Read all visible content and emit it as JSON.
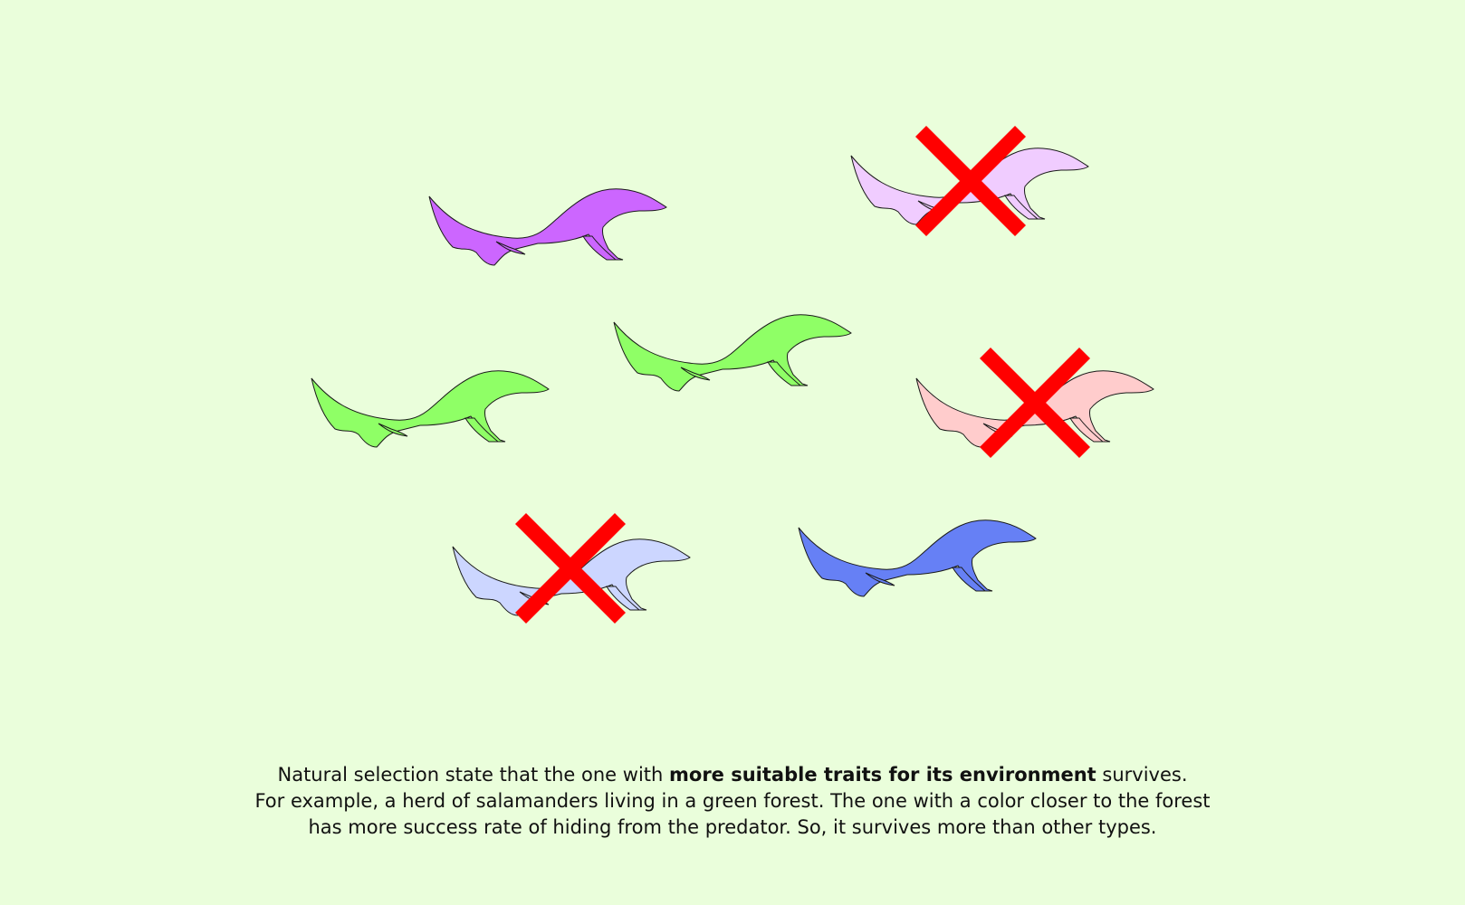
{
  "colors": {
    "background": "#eafedb",
    "outline": "#1a1a1a",
    "cross": "#ff0000"
  },
  "salamanders": [
    {
      "id": "purple",
      "color": "#cc66ff",
      "eliminated": false
    },
    {
      "id": "pale-lilac",
      "color": "#f0ccff",
      "eliminated": true
    },
    {
      "id": "green-center",
      "color": "#8fff66",
      "eliminated": false
    },
    {
      "id": "green-left",
      "color": "#8fff66",
      "eliminated": false
    },
    {
      "id": "pale-pink",
      "color": "#ffcccc",
      "eliminated": true
    },
    {
      "id": "pale-blue",
      "color": "#ccd6ff",
      "eliminated": true
    },
    {
      "id": "blue",
      "color": "#6680f5",
      "eliminated": false
    }
  ],
  "caption": {
    "line1_prefix": "Natural selection state that the one with ",
    "line1_bold": "more suitable traits for its environment",
    "line1_suffix": " survives.",
    "line2": "For example, a herd of salamanders living in a green forest. The one with a color closer to the forest",
    "line3": "has more success rate of hiding from the predator. So, it survives more than other types."
  }
}
